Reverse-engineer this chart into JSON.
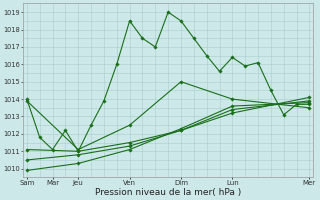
{
  "bg_color": "#cce8e8",
  "grid_color": "#aacccc",
  "line_color": "#1a6e1a",
  "marker_color": "#1a6e1a",
  "xlabel": "Pression niveau de la mer( hPa )",
  "xlabel_fontsize": 6.5,
  "ylim": [
    1009.5,
    1019.5
  ],
  "yticks": [
    1010,
    1011,
    1012,
    1013,
    1014,
    1015,
    1016,
    1017,
    1018,
    1019
  ],
  "ytick_fontsize": 4.8,
  "xtick_fontsize": 5.0,
  "major_x_positions": [
    0,
    2,
    4,
    8,
    12,
    16,
    22
  ],
  "major_x_labels": [
    "Sam",
    "Mar",
    "Jeu",
    "Ven",
    "Dim",
    "Lun",
    "Mer"
  ],
  "minor_x_positions": [
    0,
    1,
    2,
    3,
    4,
    5,
    6,
    7,
    8,
    9,
    10,
    11,
    12,
    13,
    14,
    15,
    16,
    17,
    18,
    19,
    20,
    21,
    22
  ],
  "xlim": [
    -0.3,
    22.3
  ],
  "series1": {
    "x": [
      0,
      1,
      2,
      3,
      4,
      5,
      6,
      7,
      8,
      9,
      10,
      11,
      12,
      13,
      14,
      15,
      16,
      17,
      18,
      19,
      20,
      21,
      22
    ],
    "y": [
      1014.0,
      1011.8,
      1011.1,
      1012.2,
      1011.0,
      1012.5,
      1013.9,
      1016.0,
      1018.5,
      1017.5,
      1017.0,
      1019.0,
      1018.5,
      1017.5,
      1016.5,
      1015.6,
      1016.4,
      1015.9,
      1016.1,
      1014.5,
      1013.1,
      1013.7,
      1013.7
    ]
  },
  "series2": {
    "x": [
      0,
      4,
      8,
      12,
      16,
      22
    ],
    "y": [
      1013.9,
      1011.1,
      1012.5,
      1015.0,
      1014.0,
      1013.5
    ]
  },
  "series3": {
    "x": [
      0,
      4,
      8,
      12,
      16,
      22
    ],
    "y": [
      1011.1,
      1011.0,
      1011.5,
      1012.2,
      1013.2,
      1014.1
    ]
  },
  "series4": {
    "x": [
      0,
      4,
      8,
      12,
      16,
      22
    ],
    "y": [
      1010.5,
      1010.8,
      1011.3,
      1012.2,
      1013.4,
      1013.9
    ]
  },
  "series5": {
    "x": [
      0,
      4,
      8,
      12,
      16,
      22
    ],
    "y": [
      1009.9,
      1010.3,
      1011.1,
      1012.3,
      1013.6,
      1013.8
    ]
  }
}
